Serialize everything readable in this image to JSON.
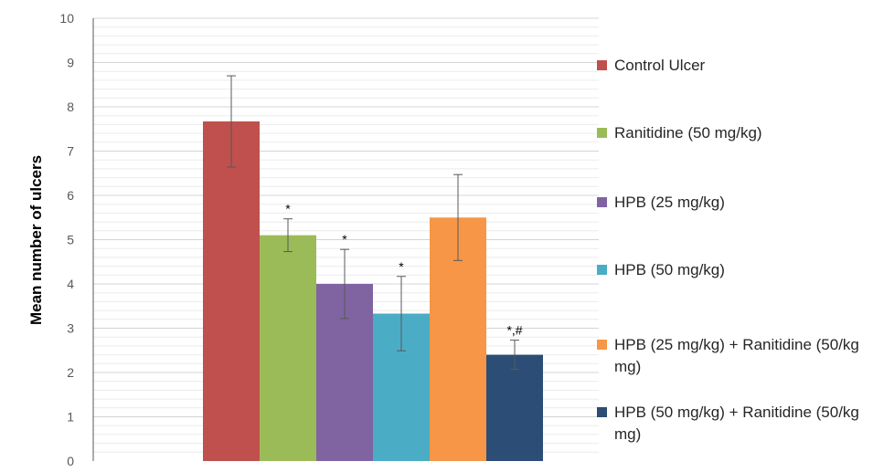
{
  "chart_data": {
    "type": "bar",
    "title": "",
    "xlabel": "",
    "ylabel": "Mean number of ulcers",
    "ylim": [
      0,
      10
    ],
    "yticks": [
      "0",
      "1",
      "2",
      "3",
      "4",
      "5",
      "6",
      "7",
      "8",
      "9",
      "10"
    ],
    "grid": true,
    "legend_position": "right",
    "series": [
      {
        "name": "Control Ulcer",
        "value": 7.67,
        "error": 1.03,
        "annotation": "",
        "color": "#c0504d"
      },
      {
        "name": "Ranitidine (50 mg/kg)",
        "value": 5.1,
        "error": 0.37,
        "annotation": "*",
        "color": "#9bbb59"
      },
      {
        "name": "HPB (25 mg/kg)",
        "value": 4.0,
        "error": 0.78,
        "annotation": "*",
        "color": "#8064a2"
      },
      {
        "name": "HPB (50 mg/kg)",
        "value": 3.33,
        "error": 0.84,
        "annotation": "*",
        "color": "#4bacc6"
      },
      {
        "name": "HPB (25 mg/kg) + Ranitidine (50/kg mg)",
        "value": 5.5,
        "error": 0.97,
        "annotation": "",
        "color": "#f79646"
      },
      {
        "name": "HPB (50 mg/kg) + Ranitidine (50/kg mg)",
        "value": 2.4,
        "error": 0.33,
        "annotation": "*,#",
        "color": "#2c4d75"
      }
    ]
  }
}
